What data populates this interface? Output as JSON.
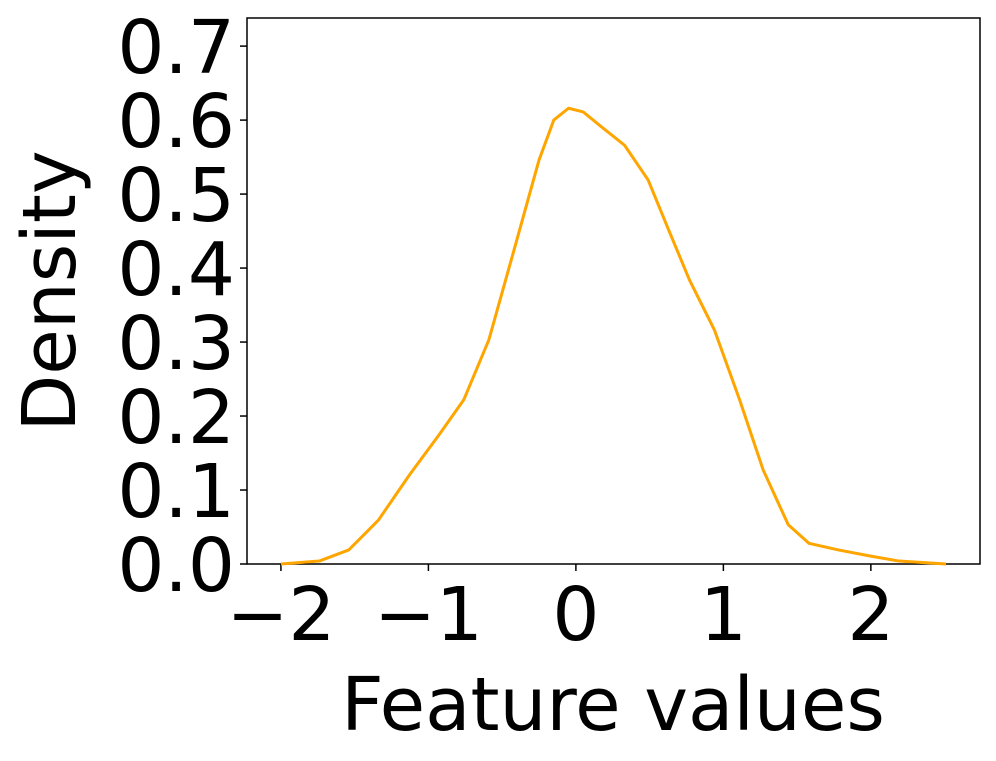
{
  "chart_data": {
    "type": "line",
    "xlabel": "Feature values",
    "ylabel": "Density",
    "x": [
      -2.0,
      -1.74,
      -1.54,
      -1.34,
      -1.13,
      -0.93,
      -0.76,
      -0.59,
      -0.42,
      -0.25,
      -0.15,
      -0.05,
      0.05,
      0.16,
      0.33,
      0.49,
      0.63,
      0.77,
      0.94,
      1.11,
      1.27,
      1.44,
      1.58,
      1.78,
      1.99,
      2.19,
      2.51
    ],
    "series": [
      {
        "color": "#ffa500",
        "values": [
          0.0,
          0.004,
          0.019,
          0.059,
          0.12,
          0.174,
          0.222,
          0.303,
          0.424,
          0.546,
          0.6,
          0.616,
          0.611,
          0.593,
          0.566,
          0.519,
          0.451,
          0.384,
          0.316,
          0.222,
          0.127,
          0.053,
          0.028,
          0.019,
          0.011,
          0.004,
          0.0
        ]
      }
    ],
    "xlim": [
      -2.23,
      2.74
    ],
    "xticks": [
      {
        "value": -2,
        "label": "−2"
      },
      {
        "value": -1,
        "label": "−1"
      },
      0,
      1,
      2
    ],
    "ylim": [
      0,
      0.738
    ],
    "yticks": [
      {
        "value": 0,
        "label": "0.0"
      },
      0.1,
      0.2,
      0.3,
      0.4,
      0.5,
      0.6,
      0.7
    ],
    "grid": false
  }
}
